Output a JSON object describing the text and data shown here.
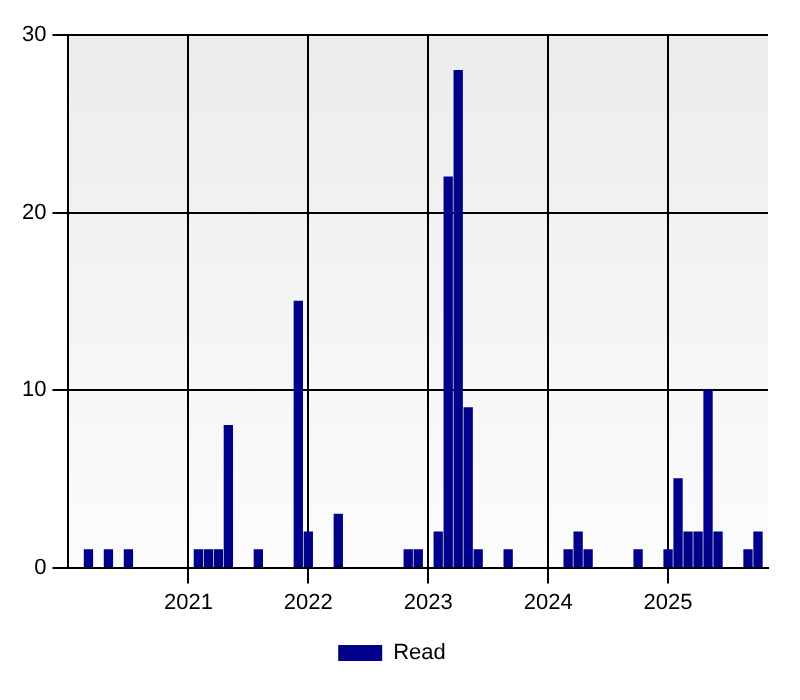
{
  "chart_data": {
    "type": "bar",
    "x": [
      "2020-03",
      "2020-05",
      "2020-07",
      "2021-02",
      "2021-03",
      "2021-04",
      "2021-05",
      "2021-08",
      "2021-12",
      "2022-01",
      "2022-04",
      "2022-11",
      "2022-12",
      "2023-02",
      "2023-03",
      "2023-04",
      "2023-05",
      "2023-06",
      "2023-09",
      "2024-03",
      "2024-04",
      "2024-05",
      "2024-10",
      "2025-01",
      "2025-02",
      "2025-03",
      "2025-04",
      "2025-05",
      "2025-06",
      "2025-09",
      "2025-10"
    ],
    "series": [
      {
        "name": "Read",
        "color": "#00008b",
        "values": [
          1,
          1,
          1,
          1,
          1,
          1,
          8,
          1,
          15,
          2,
          3,
          1,
          1,
          2,
          22,
          28,
          9,
          1,
          1,
          1,
          2,
          1,
          1,
          1,
          5,
          2,
          2,
          10,
          2,
          1,
          2
        ]
      }
    ],
    "xlim": [
      "2020-01",
      "2025-11"
    ],
    "xticks": [
      "2021",
      "2022",
      "2023",
      "2024",
      "2025"
    ],
    "ylim": [
      0,
      30
    ],
    "yticks": [
      0,
      10,
      20,
      30
    ],
    "grid": true,
    "legend": "bottom"
  }
}
